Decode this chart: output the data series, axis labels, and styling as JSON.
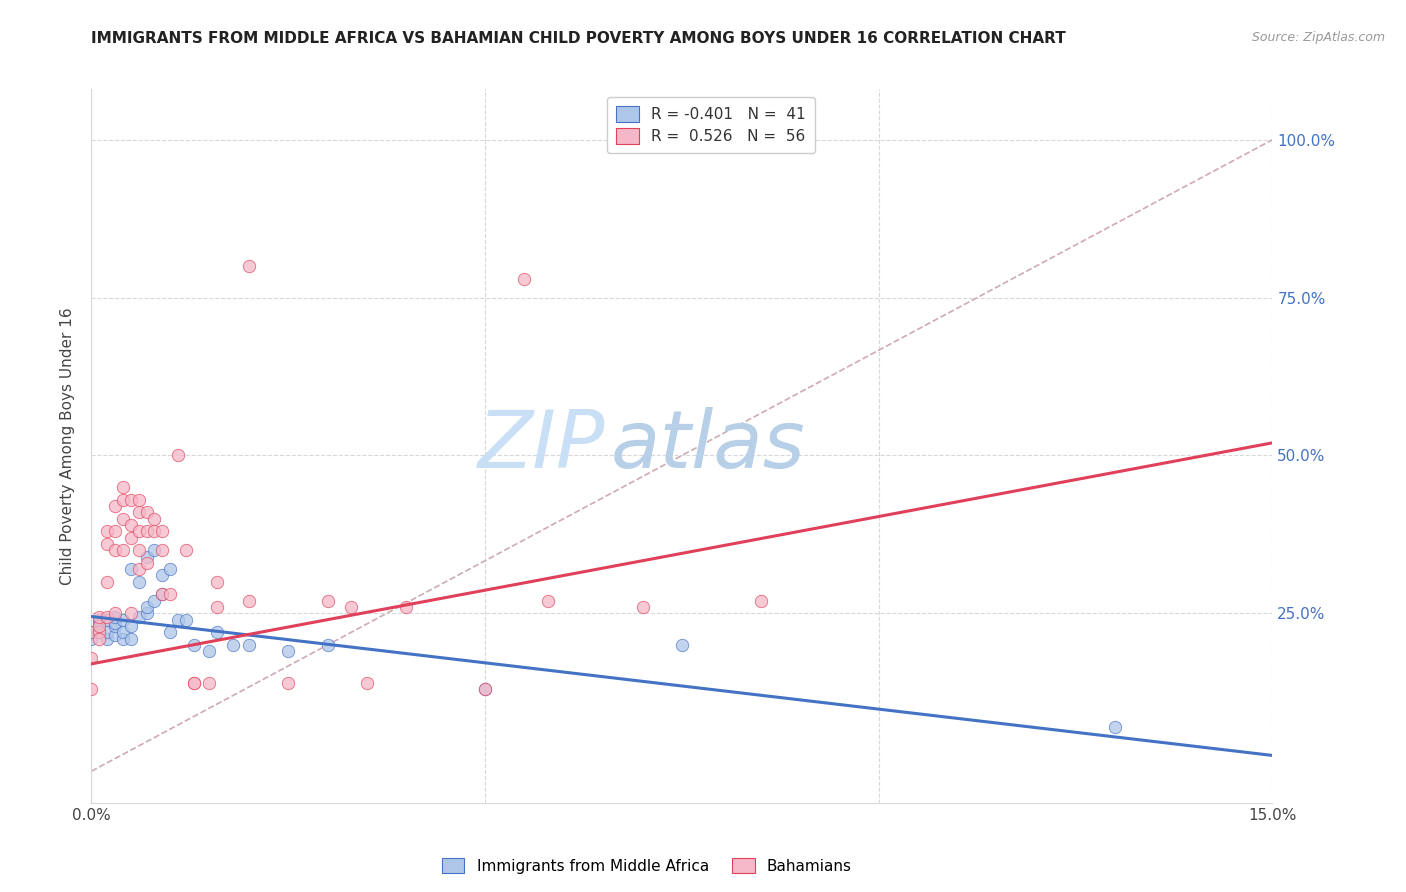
{
  "title": "IMMIGRANTS FROM MIDDLE AFRICA VS BAHAMIAN CHILD POVERTY AMONG BOYS UNDER 16 CORRELATION CHART",
  "source": "Source: ZipAtlas.com",
  "ylabel": "Child Poverty Among Boys Under 16",
  "x_min": 0.0,
  "x_max": 0.15,
  "y_min": -0.05,
  "y_max": 1.08,
  "watermark_zip": "ZIP",
  "watermark_atlas": "atlas",
  "legend": {
    "blue_label": "R = -0.401   N =  41",
    "pink_label": "R =  0.526   N =  56",
    "bottom_blue": "Immigrants from Middle Africa",
    "bottom_pink": "Bahamians"
  },
  "blue_scatter_x": [
    0.0,
    0.0,
    0.001,
    0.001,
    0.001,
    0.002,
    0.002,
    0.002,
    0.003,
    0.003,
    0.003,
    0.003,
    0.004,
    0.004,
    0.004,
    0.005,
    0.005,
    0.005,
    0.006,
    0.006,
    0.007,
    0.007,
    0.007,
    0.008,
    0.008,
    0.009,
    0.009,
    0.01,
    0.01,
    0.011,
    0.012,
    0.013,
    0.015,
    0.016,
    0.018,
    0.02,
    0.025,
    0.03,
    0.05,
    0.075,
    0.13
  ],
  "blue_scatter_y": [
    0.21,
    0.22,
    0.22,
    0.235,
    0.24,
    0.21,
    0.22,
    0.24,
    0.215,
    0.23,
    0.235,
    0.245,
    0.21,
    0.22,
    0.24,
    0.21,
    0.23,
    0.32,
    0.245,
    0.3,
    0.25,
    0.26,
    0.34,
    0.27,
    0.35,
    0.28,
    0.31,
    0.22,
    0.32,
    0.24,
    0.24,
    0.2,
    0.19,
    0.22,
    0.2,
    0.2,
    0.19,
    0.2,
    0.13,
    0.2,
    0.07
  ],
  "pink_scatter_x": [
    0.0,
    0.0,
    0.0,
    0.001,
    0.001,
    0.001,
    0.001,
    0.002,
    0.002,
    0.002,
    0.002,
    0.003,
    0.003,
    0.003,
    0.003,
    0.004,
    0.004,
    0.004,
    0.004,
    0.005,
    0.005,
    0.005,
    0.005,
    0.006,
    0.006,
    0.006,
    0.006,
    0.006,
    0.007,
    0.007,
    0.007,
    0.008,
    0.008,
    0.009,
    0.009,
    0.009,
    0.01,
    0.011,
    0.012,
    0.013,
    0.013,
    0.015,
    0.016,
    0.016,
    0.02,
    0.02,
    0.025,
    0.03,
    0.033,
    0.035,
    0.04,
    0.05,
    0.055,
    0.058,
    0.07,
    0.085
  ],
  "pink_scatter_y": [
    0.13,
    0.18,
    0.22,
    0.22,
    0.23,
    0.21,
    0.245,
    0.245,
    0.3,
    0.36,
    0.38,
    0.35,
    0.38,
    0.42,
    0.25,
    0.35,
    0.4,
    0.43,
    0.45,
    0.37,
    0.39,
    0.43,
    0.25,
    0.32,
    0.35,
    0.38,
    0.41,
    0.43,
    0.33,
    0.38,
    0.41,
    0.38,
    0.4,
    0.28,
    0.35,
    0.38,
    0.28,
    0.5,
    0.35,
    0.14,
    0.14,
    0.14,
    0.26,
    0.3,
    0.8,
    0.27,
    0.14,
    0.27,
    0.26,
    0.14,
    0.26,
    0.13,
    0.78,
    0.27,
    0.26,
    0.27
  ],
  "blue_line_x": [
    0.0,
    0.15
  ],
  "blue_line_y": [
    0.245,
    0.025
  ],
  "pink_line_x": [
    0.0,
    0.15
  ],
  "pink_line_y": [
    0.17,
    0.52
  ],
  "diag_line_x": [
    0.0,
    0.15
  ],
  "diag_line_y": [
    0.0,
    1.0
  ],
  "blue_color": "#aec6e8",
  "pink_color": "#f5b8c8",
  "blue_line_color": "#4472c4",
  "pink_line_color": "#e0405a",
  "diag_color": "#d0aab0",
  "grid_color": "#d8d8d8",
  "title_color": "#222222",
  "right_axis_color": "#4472c4",
  "watermark_zip_color": "#c8dff5",
  "watermark_atlas_color": "#b8cfe8"
}
